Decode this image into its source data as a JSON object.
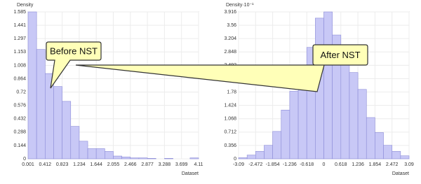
{
  "chart_data": [
    {
      "type": "histogram",
      "y_label": "Density",
      "x_label": "Dataset",
      "annotation": "Before NST",
      "color": "#c8c8f6",
      "edge_color": "#8c8cd8",
      "grid": true,
      "bins": [
        0.001,
        0.2065,
        0.412,
        0.6175,
        0.823,
        1.0285,
        1.234,
        1.439,
        1.644,
        1.8495,
        2.055,
        2.2605,
        2.466,
        2.6715,
        2.877,
        3.0825,
        3.288,
        3.4935,
        3.699,
        3.9045,
        4.11
      ],
      "values": [
        1.585,
        1.18,
        0.92,
        0.78,
        0.62,
        0.35,
        0.19,
        0.11,
        0.11,
        0.08,
        0.03,
        0.02,
        0.01,
        0.01,
        0.005,
        0,
        0.005,
        0,
        0,
        0.01
      ],
      "xlim": [
        0.001,
        4.11
      ],
      "xticks": [
        0.001,
        0.412,
        0.823,
        1.234,
        1.644,
        2.055,
        2.466,
        2.877,
        3.288,
        3.699,
        4.11
      ],
      "ylim": [
        0,
        1.585
      ],
      "yticks": [
        0,
        0.144,
        0.288,
        0.432,
        0.576,
        0.72,
        0.864,
        1.008,
        1.153,
        1.297,
        1.441,
        1.585
      ]
    },
    {
      "type": "histogram",
      "y_label": "Density·10⁻¹",
      "x_label": "Dataset",
      "annotation": "After NST",
      "color": "#c8c8f6",
      "edge_color": "#8c8cd8",
      "grid": true,
      "bins": [
        -3.09,
        -2.781,
        -2.472,
        -2.163,
        -1.854,
        -1.545,
        -1.236,
        -0.927,
        -0.618,
        -0.309,
        0,
        0.309,
        0.618,
        0.927,
        1.236,
        1.545,
        1.854,
        2.163,
        2.472,
        2.781,
        3.09
      ],
      "values": [
        0.03,
        0.1,
        0.2,
        0.36,
        0.73,
        1.3,
        1.8,
        2.46,
        2.97,
        3.75,
        3.916,
        3.3,
        2.85,
        2.3,
        1.85,
        1.1,
        0.7,
        0.36,
        0.2,
        0.08
      ],
      "xlim": [
        -3.09,
        3.09
      ],
      "xticks": [
        -3.09,
        -2.472,
        -1.854,
        -1.236,
        -0.618,
        0,
        0.618,
        1.236,
        1.854,
        2.472,
        3.09
      ],
      "ylim": [
        0,
        3.916
      ],
      "yticks": [
        0,
        0.356,
        0.712,
        1.068,
        1.424,
        1.78,
        2.136,
        2.492,
        2.848,
        3.204,
        3.56,
        3.916
      ]
    }
  ]
}
